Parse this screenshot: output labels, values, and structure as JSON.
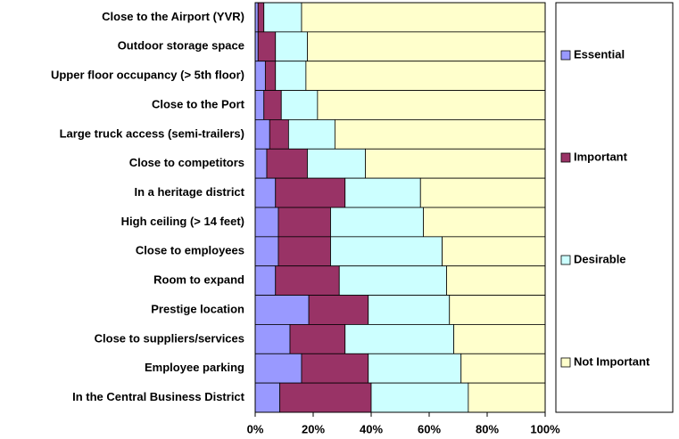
{
  "chart_data": {
    "type": "stacked_barh",
    "categories": [
      "Close to the Airport (YVR)",
      "Outdoor storage space",
      "Upper floor occupancy (> 5th floor)",
      "Close to the Port",
      "Large truck access (semi-trailers)",
      "Close to competitors",
      "In a heritage district",
      "High ceiling (> 14 feet)",
      "Close to employees",
      "Room to expand",
      "Prestige location",
      "Close to suppliers/services",
      "Employee parking",
      "In the Central Business District"
    ],
    "series": [
      {
        "name": "Essential",
        "color": "#9999ff",
        "values": [
          1,
          1,
          3.5,
          3,
          5,
          4,
          7,
          8,
          8,
          7,
          18.5,
          12,
          16,
          8.5
        ]
      },
      {
        "name": "Important",
        "color": "#993366",
        "values": [
          2,
          6,
          3.5,
          6,
          6.5,
          14,
          24,
          18,
          18,
          22,
          20.5,
          19,
          23,
          31.5
        ]
      },
      {
        "name": "Desirable",
        "color": "#ccffff",
        "values": [
          13,
          11,
          10.5,
          12.5,
          16,
          20,
          26,
          32,
          38.5,
          37,
          28,
          37.5,
          32,
          33.5
        ]
      },
      {
        "name": "Not Important",
        "color": "#ffffcc",
        "values": [
          84,
          82,
          82.5,
          78.5,
          72.5,
          62,
          43,
          42,
          35.5,
          34,
          33,
          31.5,
          29,
          26.5
        ]
      }
    ],
    "xlim": [
      0,
      100
    ],
    "xticks": [
      {
        "value": 0,
        "label": "0%"
      },
      {
        "value": 20,
        "label": "20%"
      },
      {
        "value": 40,
        "label": "40%"
      },
      {
        "value": 60,
        "label": "60%"
      },
      {
        "value": 80,
        "label": "80%"
      },
      {
        "value": 100,
        "label": "100%"
      }
    ],
    "legend": "right",
    "grid": false
  }
}
